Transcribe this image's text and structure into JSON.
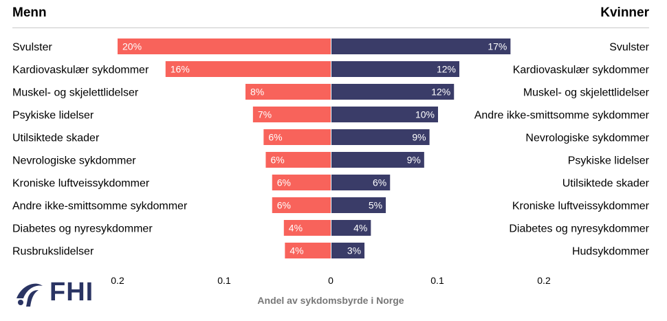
{
  "header": {
    "left_title": "Menn",
    "right_title": "Kvinner"
  },
  "logo": {
    "text": "FHI"
  },
  "colors": {
    "men": "#f8635b",
    "women": "#3a3c68",
    "rule": "#c9c9c9",
    "xlabel": "#777777"
  },
  "chart_data": {
    "type": "bar",
    "orientation": "horizontal-diverging",
    "xlabel": "Andel av sykdomsbyrde i Norge",
    "xlim": [
      -0.2,
      0.2
    ],
    "x_ticks": [
      -0.2,
      -0.1,
      0,
      0.1,
      0.2
    ],
    "x_tick_labels": [
      "0.2",
      "0.1",
      "0",
      "0.1",
      "0.2"
    ],
    "series": [
      {
        "name": "Menn",
        "side": "left",
        "categories": [
          "Svulster",
          "Kardiovaskulær sykdommer",
          "Muskel- og skjelettlidelser",
          "Psykiske lidelser",
          "Utilsiktede skader",
          "Nevrologiske sykdommer",
          "Kroniske luftveissykdommer",
          "Andre ikke-smittsomme sykdommer",
          "Diabetes og nyresykdommer",
          "Rusbrukslidelser"
        ],
        "values": [
          0.2,
          0.155,
          0.08,
          0.073,
          0.063,
          0.061,
          0.055,
          0.055,
          0.044,
          0.043
        ],
        "labels": [
          "20%",
          "16%",
          "8%",
          "7%",
          "6%",
          "6%",
          "6%",
          "6%",
          "4%",
          "4%"
        ]
      },
      {
        "name": "Kvinner",
        "side": "right",
        "categories": [
          "Svulster",
          "Kardiovaskulær sykdommer",
          "Muskel- og skjelettlidelser",
          "Andre ikke-smittsomme sykdommer",
          "Nevrologiske sykdommer",
          "Psykiske lidelser",
          "Utilsiktede skader",
          "Kroniske luftveissykdommer",
          "Diabetes og nyresykdommer",
          "Hudsykdommer"
        ],
        "values": [
          0.168,
          0.12,
          0.115,
          0.1,
          0.092,
          0.087,
          0.055,
          0.051,
          0.037,
          0.031
        ],
        "labels": [
          "17%",
          "12%",
          "12%",
          "10%",
          "9%",
          "9%",
          "6%",
          "5%",
          "4%",
          "3%"
        ]
      }
    ]
  }
}
